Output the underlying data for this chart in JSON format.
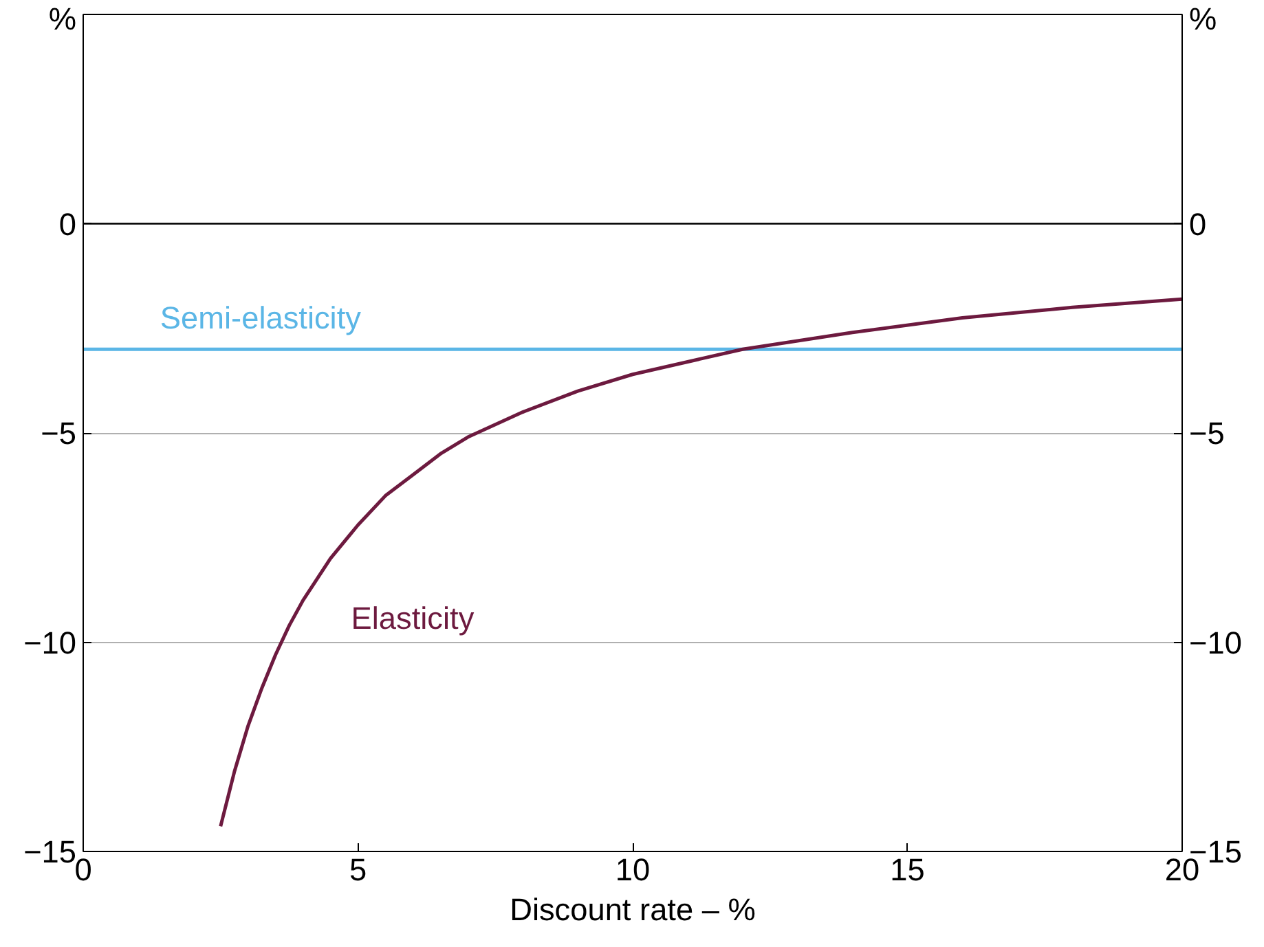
{
  "chart_data": {
    "type": "line",
    "xlabel": "Discount rate – %",
    "xlim": [
      0,
      20
    ],
    "xticks": [
      0,
      5,
      10,
      15,
      20
    ],
    "ylim": [
      -15,
      5
    ],
    "yticks": [
      -15,
      -10,
      -5,
      0,
      {
        "value": 5,
        "label": "%"
      }
    ],
    "y2lim": [
      -15,
      5
    ],
    "y2ticks": [
      -15,
      -10,
      -5,
      0,
      {
        "value": 5,
        "label": "%"
      }
    ],
    "grid": "y",
    "ref_lines": [
      {
        "axis": "y",
        "value": 0,
        "label": null,
        "color": "#000000"
      }
    ],
    "series": [
      {
        "name": "Semi-elasticity",
        "color": "#5bb6e6",
        "x": [
          0,
          20
        ],
        "values": [
          -3,
          -3
        ]
      },
      {
        "name": "Elasticity",
        "color": "#6d1a3f",
        "x": [
          2.5,
          2.75,
          3,
          3.25,
          3.5,
          3.75,
          4,
          4.5,
          5,
          5.5,
          6,
          6.5,
          7,
          8,
          9,
          10,
          11,
          12,
          13,
          14,
          16,
          18,
          20
        ],
        "values": [
          -14.4,
          -13.1,
          -12,
          -11.1,
          -10.3,
          -9.6,
          -9,
          -8,
          -7.2,
          -6.5,
          -6,
          -5.5,
          -5.1,
          -4.5,
          -4,
          -3.6,
          -3.3,
          -3,
          -2.8,
          -2.6,
          -2.25,
          -2,
          -1.8
        ]
      }
    ]
  }
}
